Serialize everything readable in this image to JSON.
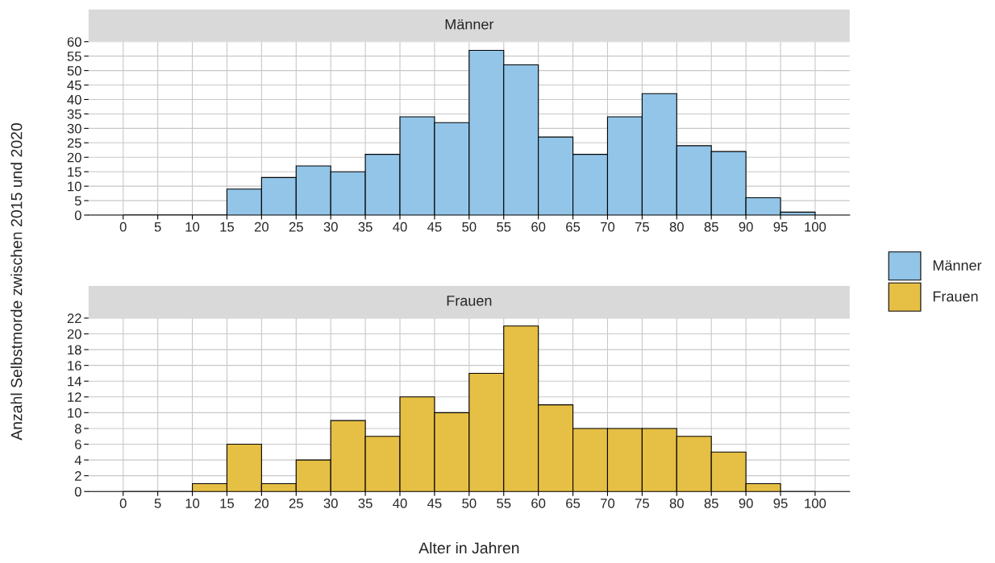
{
  "chart_data": [
    {
      "type": "histogram",
      "title": "Männer",
      "ylabel": "Anzahl Selbstmorde zwischen 2015 und 2020",
      "bins": [
        0,
        5,
        10,
        15,
        20,
        25,
        30,
        35,
        40,
        45,
        50,
        55,
        60,
        65,
        70,
        75,
        80,
        85,
        90,
        95,
        100
      ],
      "series": [
        {
          "name": "Männer",
          "color": "#92c5e8",
          "values": [
            0,
            0,
            0,
            9,
            13,
            17,
            15,
            21,
            34,
            32,
            57,
            52,
            27,
            21,
            34,
            42,
            24,
            22,
            6,
            1
          ]
        }
      ],
      "xlim": [
        -5,
        105
      ],
      "xticks": [
        0,
        5,
        10,
        15,
        20,
        25,
        30,
        35,
        40,
        45,
        50,
        55,
        60,
        65,
        70,
        75,
        80,
        85,
        90,
        95,
        100
      ],
      "ylim": [
        0,
        60
      ],
      "yticks": [
        0,
        5,
        10,
        15,
        20,
        25,
        30,
        35,
        40,
        45,
        50,
        55,
        60
      ],
      "grid": true,
      "legend": "right"
    },
    {
      "type": "histogram",
      "title": "Frauen",
      "xlabel": "Alter in Jahren",
      "bins": [
        0,
        5,
        10,
        15,
        20,
        25,
        30,
        35,
        40,
        45,
        50,
        55,
        60,
        65,
        70,
        75,
        80,
        85,
        90,
        95,
        100
      ],
      "series": [
        {
          "name": "Frauen",
          "color": "#e6bf45",
          "values": [
            0,
            0,
            1,
            6,
            1,
            4,
            9,
            7,
            12,
            10,
            15,
            21,
            11,
            8,
            8,
            8,
            7,
            5,
            1,
            0
          ]
        }
      ],
      "xlim": [
        -5,
        105
      ],
      "xticks": [
        0,
        5,
        10,
        15,
        20,
        25,
        30,
        35,
        40,
        45,
        50,
        55,
        60,
        65,
        70,
        75,
        80,
        85,
        90,
        95,
        100
      ],
      "ylim": [
        0,
        22
      ],
      "yticks": [
        0,
        2,
        4,
        6,
        8,
        10,
        12,
        14,
        16,
        18,
        20,
        22
      ],
      "grid": true,
      "legend": "right"
    }
  ]
}
